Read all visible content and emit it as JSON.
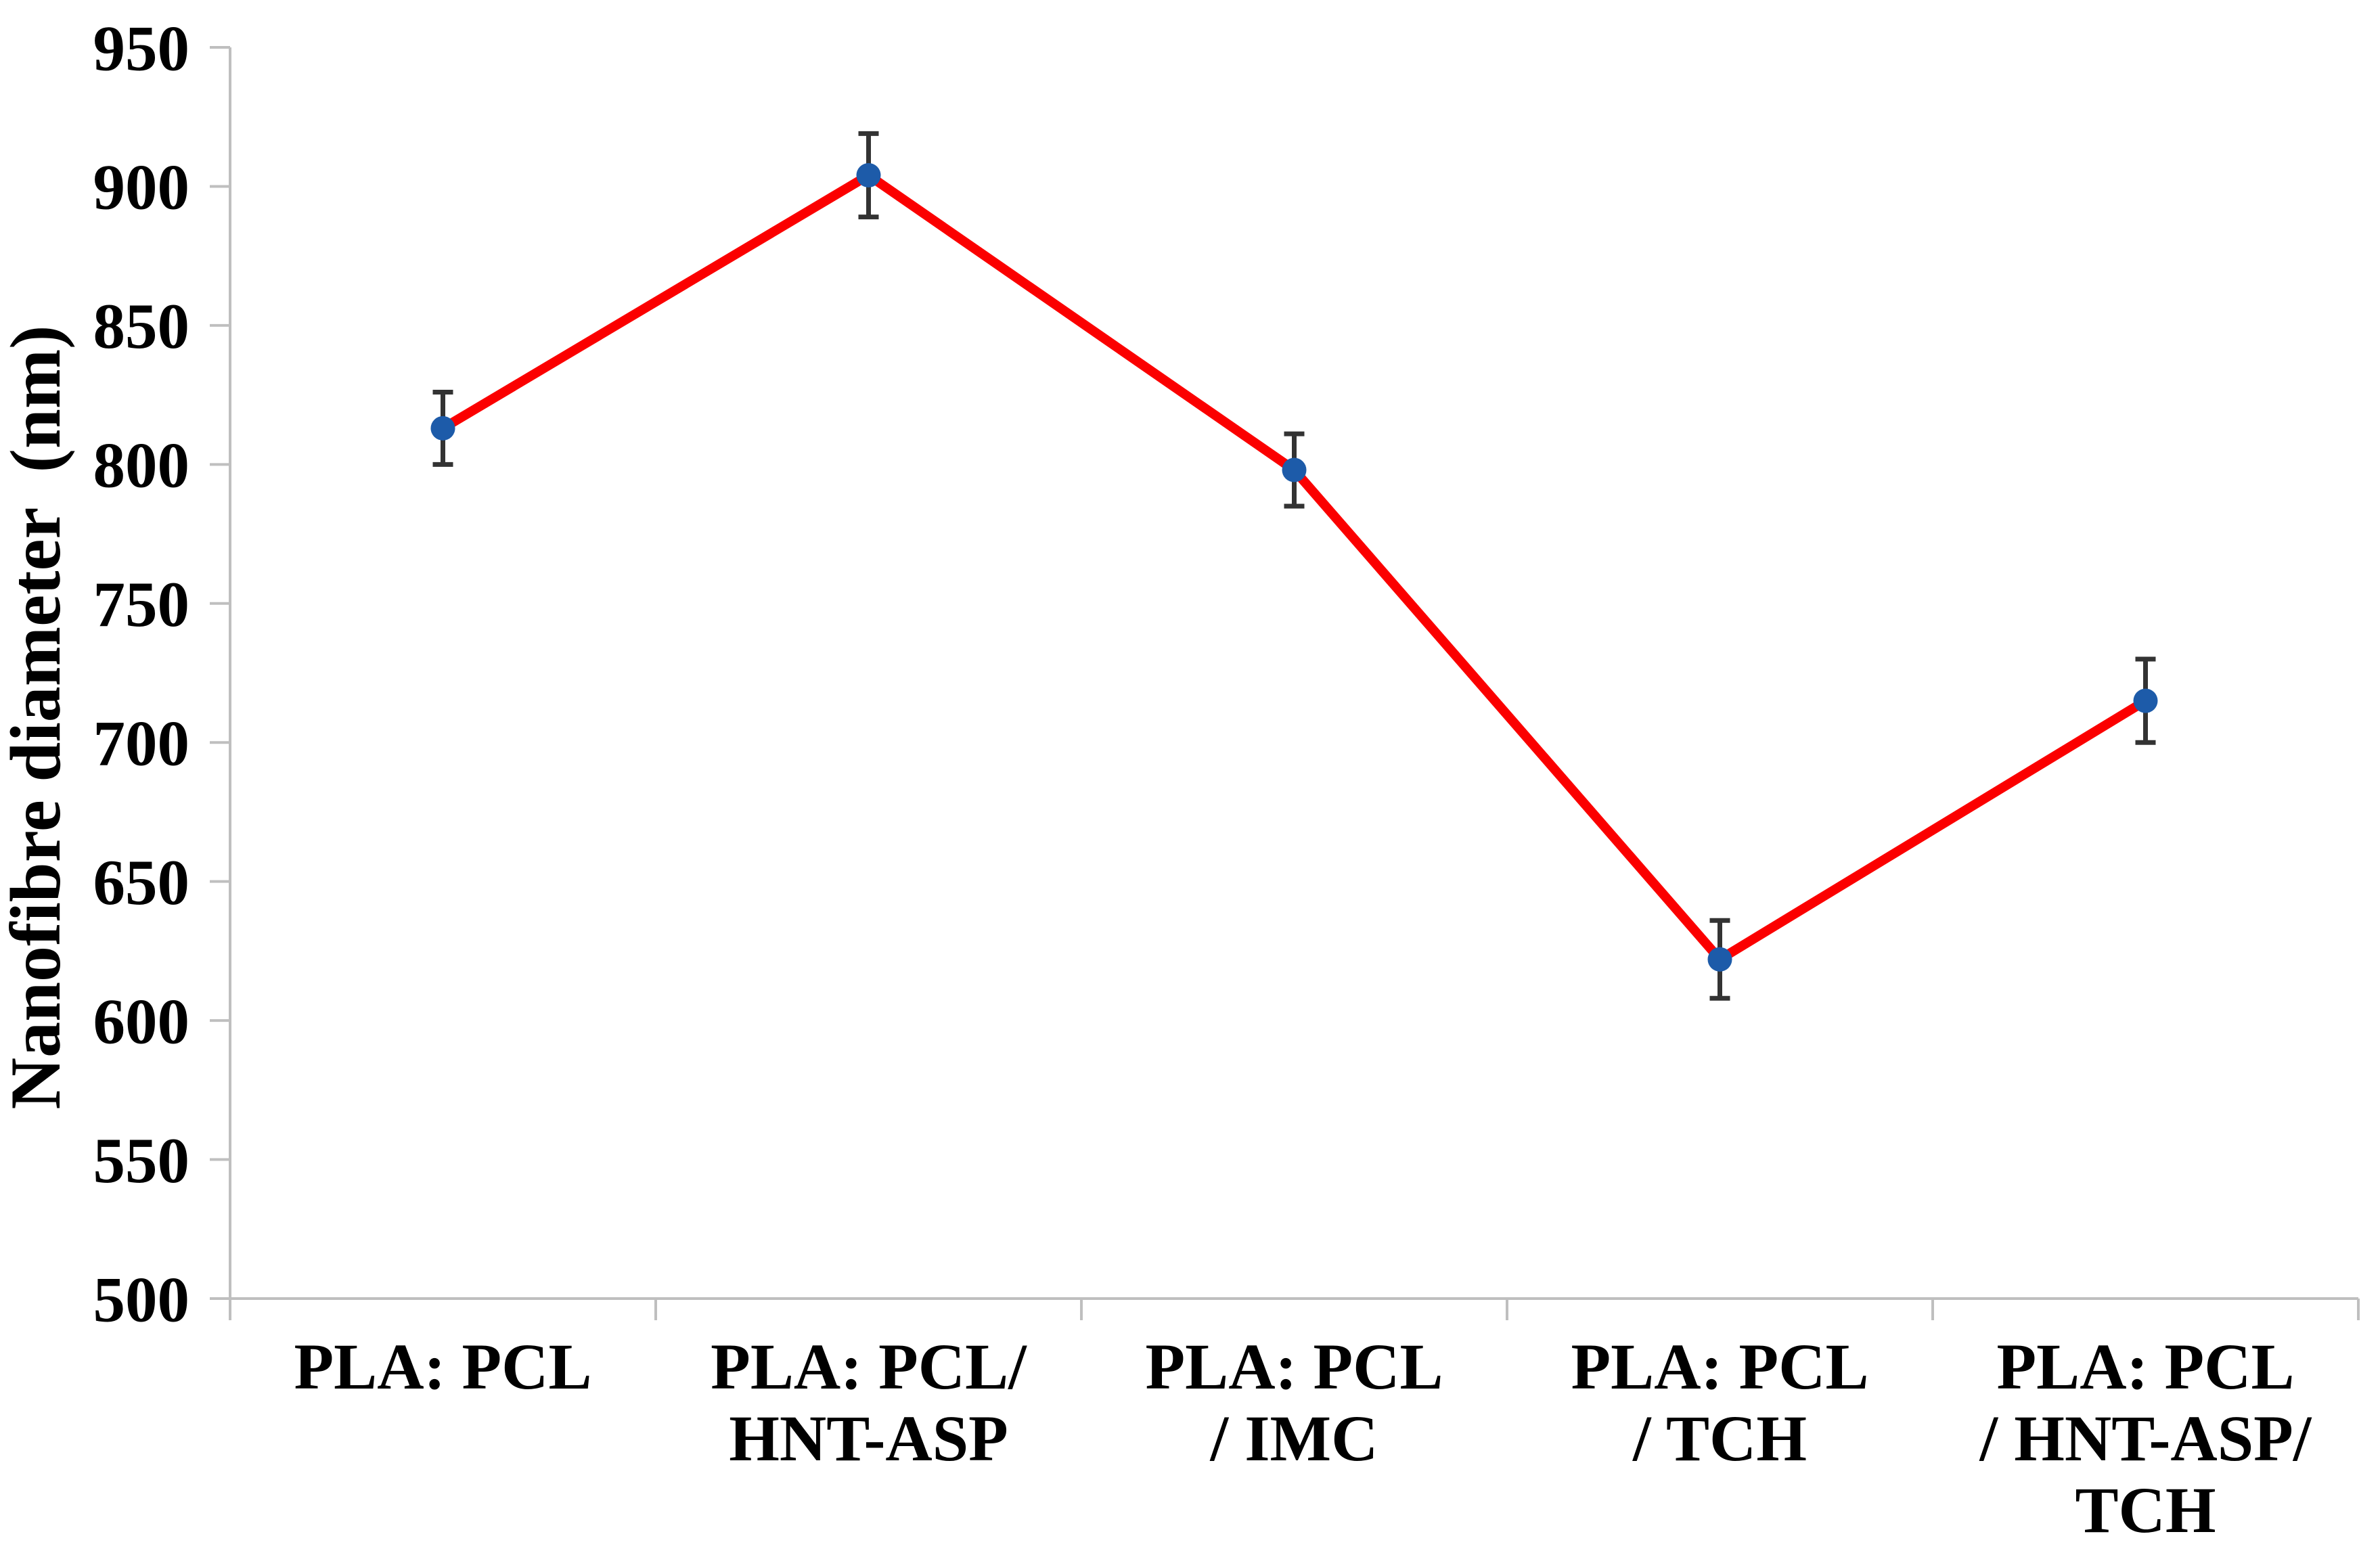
{
  "chart_data": {
    "type": "line",
    "title": "",
    "xlabel": "",
    "ylabel": "Nanofibre diameter  (nm)",
    "categories": [
      [
        "PLA: PCL"
      ],
      [
        "PLA: PCL/",
        "HNT-ASP"
      ],
      [
        "PLA: PCL",
        "/ IMC"
      ],
      [
        "PLA: PCL",
        "/ TCH"
      ],
      [
        "PLA: PCL",
        "/ HNT-ASP/",
        "TCH"
      ]
    ],
    "values": [
      813,
      904,
      798,
      622,
      715
    ],
    "error_bars_nm": [
      13,
      15,
      13,
      14,
      15
    ],
    "ylim": [
      500,
      950
    ],
    "ytick_step": 50,
    "yticks": [
      950,
      900,
      850,
      800,
      750,
      700,
      650,
      600,
      550,
      500
    ],
    "grid": false,
    "legend": false,
    "marker": "circle",
    "colors": {
      "line": "#FB0000",
      "marker": "#1D5BA9",
      "error_bar": "#333333",
      "axis": "#BFBFBF",
      "text": "#000000",
      "background": "#FFFFFF"
    }
  }
}
